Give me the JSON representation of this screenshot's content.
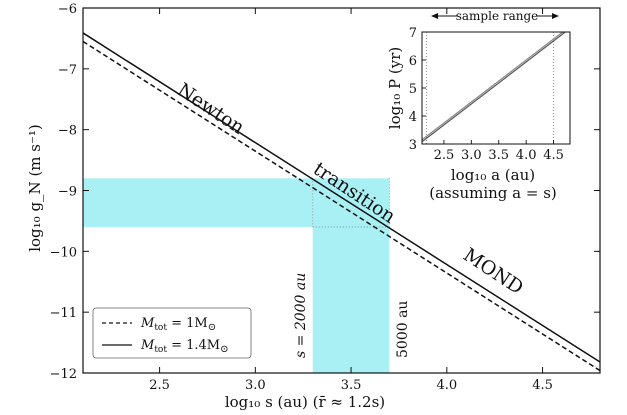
{
  "chart_data": [
    {
      "type": "line",
      "xlabel": "log₁₀ s (au)  (r̄ ≈ 1.2s)",
      "ylabel": "log₁₀ g_N (m s⁻¹)",
      "xlim": [
        2.1,
        4.8
      ],
      "ylim": [
        -12,
        -6
      ],
      "xticks": [
        2.5,
        3.0,
        3.5,
        4.0,
        4.5
      ],
      "xtick_labels": [
        "2.5",
        "3.0",
        "3.5",
        "4.0",
        "4.5"
      ],
      "yticks": [
        -12,
        -11,
        -10,
        -9,
        -8,
        -7,
        -6
      ],
      "ytick_labels": [
        "−12",
        "−11",
        "−10",
        "−9",
        "−8",
        "−7",
        "−6"
      ],
      "series": [
        {
          "name": "M_tot = 1M☉",
          "style": "dashed",
          "x": [
            2.1,
            4.8
          ],
          "y": [
            -6.55,
            -11.96
          ]
        },
        {
          "name": "M_tot = 1.4M☉",
          "style": "solid",
          "x": [
            2.1,
            4.8
          ],
          "y": [
            -6.41,
            -11.82
          ]
        }
      ],
      "legend": {
        "position": "bottom-left",
        "entries": [
          {
            "prefix": "M",
            "sub": "tot",
            "mid": " = 1M",
            "sun": "⊙",
            "style": "dashed"
          },
          {
            "prefix": "M",
            "sub": "tot",
            "mid": " = 1.4M",
            "sun": "⊙",
            "style": "solid"
          }
        ]
      },
      "shaded_regions": {
        "color": "#a8f0f4",
        "horizontal_band": {
          "x": [
            2.1,
            3.3
          ],
          "y": [
            -9.6,
            -8.8
          ]
        },
        "vertical_band": {
          "x": [
            3.3,
            3.7
          ],
          "y": [
            -12,
            -8.8
          ]
        },
        "crossing_box": {
          "x": [
            3.3,
            3.7
          ],
          "y": [
            -9.6,
            -8.8
          ]
        }
      },
      "annotations": {
        "newton": "Newton",
        "transition": "transition",
        "mond": "MOND",
        "s2000": "s = 2000 au",
        "s5000": "5000 au"
      }
    },
    {
      "type": "line",
      "xlabel_line1": "log₁₀ a (au)",
      "xlabel_line2": "(assuming a = s)",
      "ylabel": "log₁₀ P (yr)",
      "xlim": [
        2.1,
        4.8
      ],
      "ylim": [
        3,
        7
      ],
      "xticks": [
        2.5,
        3.0,
        3.5,
        4.0,
        4.5
      ],
      "xtick_labels": [
        "2.5",
        "3.0",
        "3.5",
        "4.0",
        "4.5"
      ],
      "yticks": [
        3,
        4,
        5,
        6,
        7
      ],
      "ytick_labels": [
        "3",
        "4",
        "5",
        "6",
        "7"
      ],
      "series": [
        {
          "name": "M_tot = 1M☉",
          "style": "solid",
          "color": "#888888",
          "x": [
            2.1,
            4.8
          ],
          "y": [
            3.15,
            7.2
          ]
        },
        {
          "name": "M_tot = 1.4M☉",
          "style": "solid",
          "color": "#555555",
          "x": [
            2.1,
            4.8
          ],
          "y": [
            3.08,
            7.13
          ]
        }
      ],
      "sample_range": {
        "label": "sample range",
        "x": [
          2.18,
          4.5
        ]
      }
    }
  ]
}
